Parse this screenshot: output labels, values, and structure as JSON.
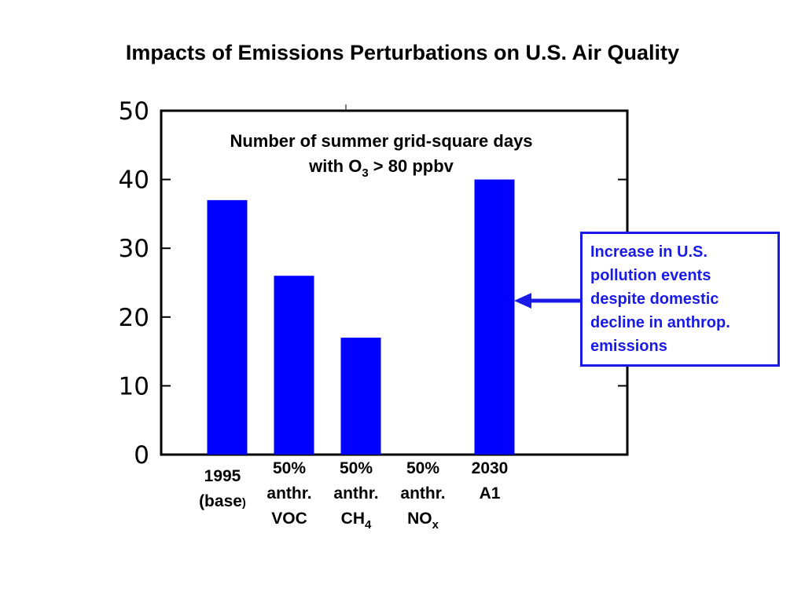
{
  "slide": {
    "title": "Impacts of Emissions Perturbations on U.S. Air Quality"
  },
  "chart_data": {
    "type": "bar",
    "subtitle": {
      "line1": "Number of summer grid-square days",
      "line2_prefix": "with O",
      "line2_sub": "3",
      "line2_suffix": " > 80 ppbv"
    },
    "ylim": [
      0,
      50
    ],
    "yticks": [
      0,
      10,
      20,
      30,
      40,
      50
    ],
    "grid": false,
    "bar_color": "#0000ff",
    "categories": [
      {
        "lines": [
          {
            "text": "1995"
          },
          {
            "text": "(base",
            "suffix": ")"
          }
        ],
        "color": "#ff3300"
      },
      {
        "lines": [
          {
            "text": "50%"
          },
          {
            "text": "anthr."
          },
          {
            "text": "VOC"
          }
        ],
        "color": "#000000"
      },
      {
        "lines": [
          {
            "text": "50%"
          },
          {
            "text": "anthr."
          },
          {
            "text": "CH",
            "sub": "4"
          }
        ],
        "color": "#000000"
      },
      {
        "lines": [
          {
            "text": "50%"
          },
          {
            "text": "anthr."
          },
          {
            "text": "NO",
            "sub": "x"
          }
        ],
        "color": "#000000"
      },
      {
        "lines": [
          {
            "text": "2030"
          },
          {
            "text": "A1"
          }
        ],
        "color": "#000000"
      }
    ],
    "values": [
      37,
      26,
      17,
      0,
      40
    ]
  },
  "callout": {
    "lines": [
      "Increase in U.S.",
      "pollution events",
      "despite domestic",
      "decline in anthrop.",
      "emissions"
    ],
    "color": "#1a1ae6"
  }
}
